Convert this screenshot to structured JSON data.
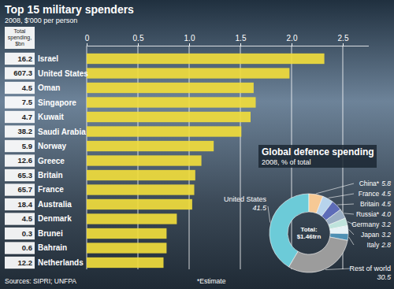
{
  "chart_data": [
    {
      "type": "bar",
      "title": "Top 15 military spenders",
      "subtitle": "2008, $'000 per person",
      "orientation": "horizontal",
      "categories": [
        "Israel",
        "United States",
        "Oman",
        "Singapore",
        "Kuwait",
        "Saudi Arabia",
        "Norway",
        "Greece",
        "Britain",
        "France",
        "Australia",
        "Denmark",
        "Brunei",
        "Bahrain",
        "Netherlands"
      ],
      "values": [
        2.32,
        1.98,
        1.63,
        1.65,
        1.6,
        1.51,
        1.24,
        1.12,
        1.06,
        1.05,
        1.03,
        0.88,
        0.78,
        0.78,
        0.75
      ],
      "color": "#f0dc3c",
      "xlim": [
        0,
        2.75
      ],
      "xticks": [
        0,
        0.5,
        {
          "value": 1,
          "label": "1.0"
        },
        1.5,
        {
          "value": 2,
          "label": "2.0"
        },
        2.5
      ],
      "grid": true,
      "total_spending": {
        "label": "Total spending, $bn",
        "values": [
          16.2,
          607.3,
          4.5,
          7.5,
          4.7,
          38.2,
          5.9,
          12.6,
          65.3,
          65.7,
          18.4,
          4.5,
          0.3,
          0.6,
          12.2
        ]
      },
      "note": "*Estimate",
      "source": "Sources: SIPRI; UNFPA"
    },
    {
      "type": "pie",
      "title": "Global defence spending",
      "subtitle": "2008, % of total",
      "categories": [
        "United States",
        "China*",
        "France",
        "Britain",
        "Russia*",
        "Germany",
        "Japan",
        "Italy",
        "Rest of world"
      ],
      "values": [
        41.5,
        5.8,
        4.5,
        4.5,
        4,
        3.2,
        3.2,
        2.8,
        30.5
      ],
      "value_labels": [
        "41.5",
        "5.8",
        "4.5",
        "4.5",
        "4.0",
        "3.2",
        "3.2",
        "2.8",
        "30.5"
      ],
      "colors": [
        "#6ccbd8",
        "#f6c995",
        "#b7d3ec",
        "#5d6cb8",
        "#9aaec4",
        "#bfe3dc",
        "#e6f2f6",
        "#4f90b3",
        "#9c9c9c"
      ],
      "data_labels": true,
      "annotation": "Total: $1.46trn"
    }
  ]
}
